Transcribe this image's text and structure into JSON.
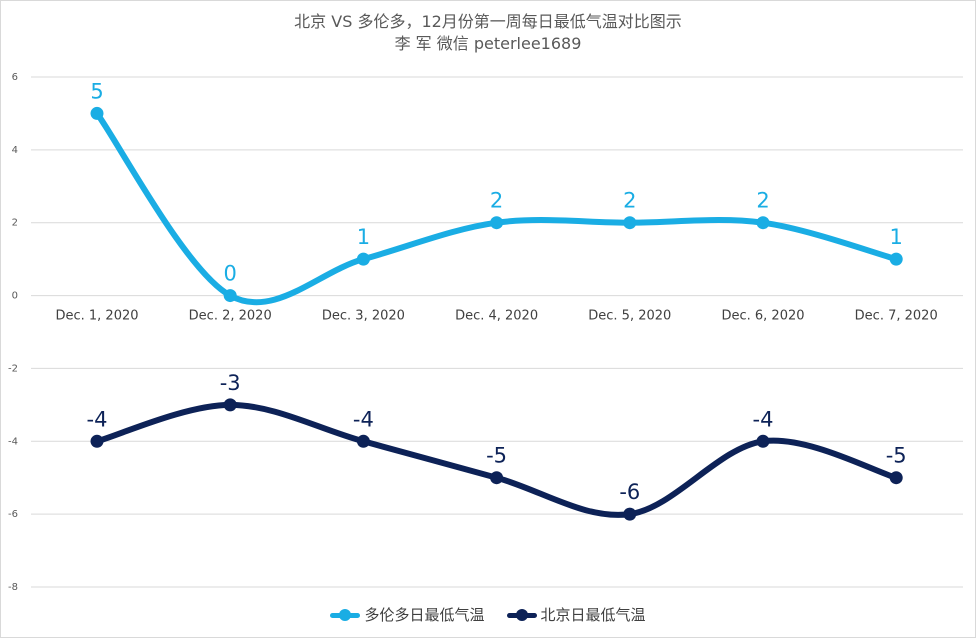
{
  "chart_data": {
    "type": "line",
    "title": "北京 VS 多伦多，12月份第一周每日最低气温对比图示",
    "subtitle": "李 军  微信 peterlee1689",
    "categories": [
      "Dec. 1, 2020",
      "Dec. 2, 2020",
      "Dec. 3, 2020",
      "Dec. 4, 2020",
      "Dec. 5, 2020",
      "Dec. 6, 2020",
      "Dec. 7, 2020"
    ],
    "series": [
      {
        "name": "多伦多日最低气温",
        "color": "#1AADE4",
        "values": [
          5,
          0,
          1,
          2,
          2,
          2,
          1
        ]
      },
      {
        "name": "北京日最低气温",
        "color": "#0D2257",
        "values": [
          -4,
          -3,
          -4,
          -5,
          -6,
          -4,
          -5
        ]
      }
    ],
    "ylim": [
      -8,
      6
    ],
    "yticks": [
      6,
      4,
      2,
      0,
      -2,
      -4,
      -6,
      -8
    ],
    "grid": true,
    "smooth": true,
    "data_labels": true,
    "legend_position": "bottom"
  }
}
